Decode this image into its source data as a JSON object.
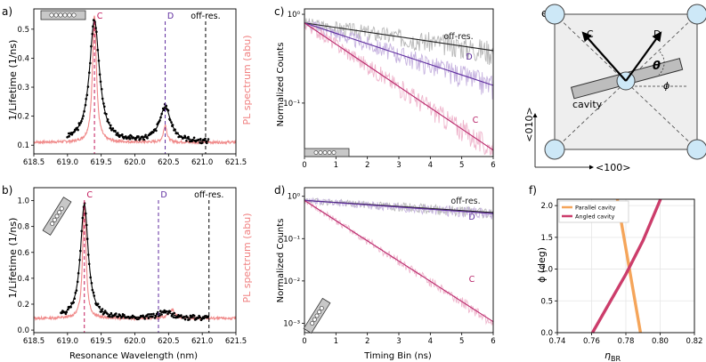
{
  "chart_data": [
    {
      "id": "a",
      "type": "line",
      "panel_label": "a)",
      "xlabel": "",
      "ylabel": "1/Lifetime (1/ns)",
      "ylabel_right": "PL spectrum (abu)",
      "xlim": [
        618.5,
        621.5
      ],
      "ylim": [
        0.07,
        0.57
      ],
      "xticks": [
        618.5,
        619.0,
        619.5,
        620.0,
        620.5,
        621.0,
        621.5
      ],
      "xtick_labels": [
        "618.5",
        "619.0",
        "619.5",
        "620.0",
        "620.5",
        "621.0",
        "621.5"
      ],
      "yticks": [
        0.1,
        0.2,
        0.3,
        0.4,
        0.5
      ],
      "ytick_labels": [
        "0.1",
        "0.2",
        "0.3",
        "0.4",
        "0.5"
      ],
      "vlines": [
        {
          "x": 619.4,
          "label": "C",
          "color": "#c2185b"
        },
        {
          "x": 620.45,
          "label": "D",
          "color": "#5e2c9e"
        },
        {
          "x": 621.05,
          "label": "off-res.",
          "color": "#000000"
        }
      ],
      "fit": {
        "baseline": 0.11,
        "peaks": [
          {
            "x0": 619.4,
            "amp": 0.42,
            "width": 0.09
          },
          {
            "x0": 620.45,
            "amp": 0.12,
            "width": 0.1
          }
        ]
      },
      "pl_spectrum": {
        "baseline": 0.11,
        "peaks": [
          {
            "x0": 619.4,
            "amp": 0.44,
            "width": 0.035
          },
          {
            "x0": 620.45,
            "amp": 0.06,
            "width": 0.03
          }
        ]
      },
      "measured_range": [
        619.0,
        621.1
      ]
    },
    {
      "id": "b",
      "type": "line",
      "panel_label": "b)",
      "xlabel": "Resonance Wavelength (nm)",
      "ylabel": "1/Lifetime (1/ns)",
      "ylabel_right": "PL spectrum (abu)",
      "xlim": [
        618.5,
        621.5
      ],
      "ylim": [
        -0.02,
        1.1
      ],
      "xticks": [
        618.5,
        619.0,
        619.5,
        620.0,
        620.5,
        621.0,
        621.5
      ],
      "xtick_labels": [
        "618.5",
        "619.0",
        "619.5",
        "620.0",
        "620.5",
        "621.0",
        "621.5"
      ],
      "yticks": [
        0.0,
        0.2,
        0.4,
        0.6,
        0.8,
        1.0
      ],
      "ytick_labels": [
        "0.0",
        "0.2",
        "0.4",
        "0.6",
        "0.8",
        "1.0"
      ],
      "vlines": [
        {
          "x": 619.25,
          "label": "C",
          "color": "#c2185b"
        },
        {
          "x": 620.35,
          "label": "D",
          "color": "#5e2c9e"
        },
        {
          "x": 621.1,
          "label": "off-res.",
          "color": "#000000"
        }
      ],
      "fit": {
        "baseline": 0.09,
        "peaks": [
          {
            "x0": 619.25,
            "amp": 0.88,
            "width": 0.07
          },
          {
            "x0": 620.45,
            "amp": 0.05,
            "width": 0.12
          }
        ]
      },
      "pl_spectrum": {
        "baseline": 0.09,
        "peaks": [
          {
            "x0": 619.25,
            "amp": 0.9,
            "width": 0.03
          },
          {
            "x0": 620.55,
            "amp": 0.07,
            "width": 0.05
          }
        ]
      },
      "measured_range": [
        618.9,
        621.1
      ]
    },
    {
      "id": "c",
      "type": "line",
      "panel_label": "c)",
      "xlabel": "",
      "ylabel": "Normalized Counts",
      "scale_y": "log",
      "xlim": [
        0,
        6
      ],
      "ylim": [
        0.025,
        1.15
      ],
      "xticks": [
        0,
        1,
        2,
        3,
        4,
        5,
        6
      ],
      "xtick_labels": [
        "0",
        "1",
        "2",
        "3",
        "4",
        "5",
        "6"
      ],
      "yticks": [
        1,
        0.1
      ],
      "ytick_labels": [
        "10⁰",
        "10⁻¹"
      ],
      "series": [
        {
          "name": "off-res.",
          "color": "#222222",
          "raw_color": "#b8b8b8",
          "y0": 0.8,
          "rate": 0.12
        },
        {
          "name": "D",
          "color": "#5e2c9e",
          "raw_color": "#c7b4e0",
          "y0": 0.8,
          "rate": 0.27
        },
        {
          "name": "C",
          "color": "#b8266a",
          "raw_color": "#efb6cd",
          "y0": 0.8,
          "rate": 0.55
        }
      ]
    },
    {
      "id": "d",
      "type": "line",
      "panel_label": "d)",
      "xlabel": "Timing Bin (ns)",
      "ylabel": "Normalized Counts",
      "scale_y": "log",
      "xlim": [
        0,
        6
      ],
      "ylim": [
        0.0006,
        1.6
      ],
      "xticks": [
        0,
        1,
        2,
        3,
        4,
        5,
        6
      ],
      "xtick_labels": [
        "0",
        "1",
        "2",
        "3",
        "4",
        "5",
        "6"
      ],
      "yticks": [
        1,
        0.1,
        0.01,
        0.001
      ],
      "ytick_labels": [
        "10⁰",
        "10⁻¹",
        "10⁻²",
        "10⁻³"
      ],
      "series": [
        {
          "name": "off-res.",
          "color": "#222222",
          "raw_color": "#b8b8b8",
          "y0": 0.8,
          "rate": 0.11
        },
        {
          "name": "D",
          "color": "#5e2c9e",
          "raw_color": "#c7b4e0",
          "y0": 0.8,
          "rate": 0.12
        },
        {
          "name": "C",
          "color": "#b8266a",
          "raw_color": "#efb6cd",
          "y0": 0.8,
          "rate": 1.1
        }
      ]
    },
    {
      "id": "f",
      "type": "line",
      "panel_label": "f)",
      "xlabel": "η_BR",
      "ylabel": "ϕ (deg)",
      "xlim": [
        0.74,
        0.82
      ],
      "ylim": [
        0.0,
        2.1
      ],
      "xticks": [
        0.74,
        0.76,
        0.78,
        0.8,
        0.82
      ],
      "xtick_labels": [
        "0.74",
        "0.76",
        "0.78",
        "0.80",
        "0.82"
      ],
      "yticks": [
        0.0,
        0.5,
        1.0,
        1.5,
        2.0
      ],
      "ytick_labels": [
        "0.0",
        "0.5",
        "1.0",
        "1.5",
        "2.0"
      ],
      "legend_position": "top-left",
      "series": [
        {
          "name": "Parallel cavity",
          "color": "#f5a55a",
          "x": [
            0.775,
            0.7885
          ],
          "y": [
            2.1,
            0.0
          ]
        },
        {
          "name": "Angled cavity",
          "color": "#cc3d6b",
          "x": [
            0.7605,
            0.77,
            0.78,
            0.79,
            0.8002
          ],
          "y": [
            0.0,
            0.45,
            0.92,
            1.45,
            2.1
          ]
        }
      ]
    }
  ],
  "diagram_e": {
    "panel_label": "e)",
    "labels": {
      "c": "C",
      "d": "D",
      "theta": "θ",
      "phi": "ϕ",
      "cavity": "cavity",
      "axis_y": "<010>",
      "axis_x": "<100>"
    },
    "colors": {
      "square_fill": "#eeeeee",
      "atom": "#cde8f7",
      "cavity": "#bdbdbd"
    }
  }
}
